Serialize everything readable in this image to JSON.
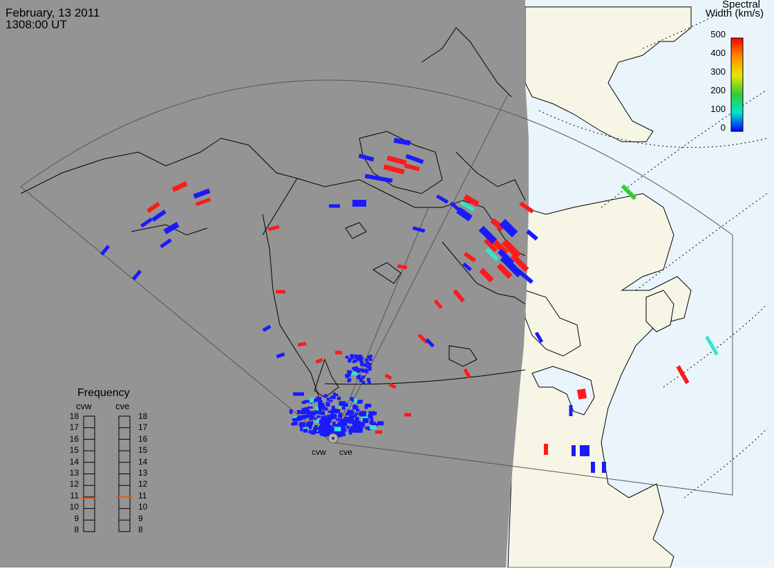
{
  "title": {
    "date": "February, 13 2011",
    "time": "1308:00 UT"
  },
  "colorbar": {
    "title_line1": "Spectral",
    "title_line2": "Width (km/s)",
    "ticks": [
      "500",
      "400",
      "300",
      "200",
      "100",
      "0"
    ],
    "colors": [
      "#ff0000",
      "#ff8c00",
      "#e6e600",
      "#33cc33",
      "#00e6cc",
      "#0000ff"
    ]
  },
  "frequency": {
    "title": "Frequency",
    "left_label": "cvw",
    "right_label": "cve",
    "scale": [
      "18",
      "17",
      "16",
      "15",
      "14",
      "13",
      "12",
      "11",
      "10",
      "9",
      "8"
    ],
    "cvw_value_mhz": 10.9,
    "cve_value_mhz": 11.0,
    "marker_color": "#e05a1a"
  },
  "radars": {
    "west": "cvw",
    "east": "cve"
  },
  "colors": {
    "night": "#949494",
    "day_land": "#f7f5e6",
    "day_ocean": "#e9f5fb",
    "low_width": "#1a1aff",
    "high_width": "#ff1a1a",
    "mid_width": "#33e6cc"
  }
}
